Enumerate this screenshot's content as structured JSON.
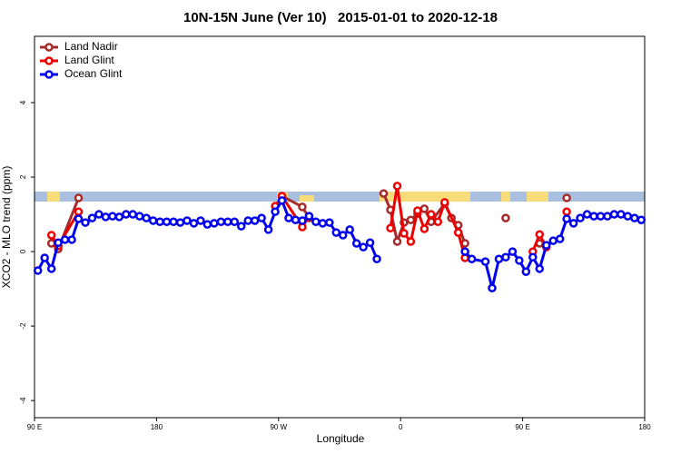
{
  "chart_data": {
    "type": "line",
    "title": "10N-15N June (Ver 10)   2015-01-01 to 2020-12-18",
    "x_label": "Longitude",
    "y_label": "XCO2 - MLO trend (ppm)",
    "xlim": [
      90,
      540
    ],
    "ylim": [
      -4.46,
      5.78
    ],
    "xticks": [
      {
        "value": 90,
        "label": "90 E"
      },
      180,
      {
        "value": 270,
        "label": "90 W"
      },
      {
        "value": 360,
        "label": "0"
      },
      {
        "value": 450,
        "label": "90 E"
      },
      {
        "value": 540,
        "label": "180"
      }
    ],
    "yticks": [
      -4,
      -2,
      0,
      2,
      4
    ],
    "legend": "top-left",
    "series": [
      {
        "name": "Land Nadir",
        "color": "#a52a2a",
        "x": [
          102.5,
          107.5,
          122.5,
          127.5,
          272.5,
          287.5,
          292.5,
          297.5,
          347.5,
          352.5,
          357.5,
          362.5,
          367.5,
          372.5,
          377.5,
          382.5,
          392.5,
          397.5,
          402.5,
          407.5,
          412.5,
          437.5,
          442.5,
          462.5,
          467.5,
          482.5
        ],
        "values": [
          0.22,
          0.07,
          1.44,
          null,
          1.49,
          1.2,
          0.9,
          null,
          1.56,
          1.12,
          0.27,
          0.78,
          0.85,
          1.02,
          1.15,
          0.8,
          1.29,
          0.9,
          0.71,
          0.22,
          null,
          0.9,
          null,
          0.22,
          null,
          1.44
        ]
      },
      {
        "name": "Land Glint",
        "color": "#ee0000",
        "x": [
          102.5,
          107.5,
          122.5,
          127.5,
          267.5,
          272.5,
          287.5,
          292.5,
          297.5,
          352.5,
          357.5,
          362.5,
          367.5,
          372.5,
          377.5,
          382.5,
          387.5,
          392.5,
          402.5,
          407.5,
          412.5,
          457.5,
          462.5,
          467.5,
          472.5,
          482.5
        ],
        "values": [
          0.44,
          0.15,
          1.07,
          null,
          1.22,
          1.49,
          0.66,
          0.95,
          null,
          0.63,
          1.76,
          0.49,
          0.27,
          1.1,
          0.61,
          1.0,
          0.8,
          1.32,
          0.51,
          -0.17,
          null,
          0.0,
          0.46,
          0.12,
          null,
          1.07
        ]
      },
      {
        "name": "Ocean Glint",
        "color": "#0000ee",
        "x": [
          92.5,
          97.5,
          102.5,
          107.5,
          112.5,
          117.5,
          122.5,
          127.5,
          132.5,
          137.5,
          142.5,
          147.5,
          152.5,
          157.5,
          162.5,
          167.5,
          172.5,
          177.5,
          182.5,
          187.5,
          192.5,
          197.5,
          202.5,
          207.5,
          212.5,
          217.5,
          222.5,
          227.5,
          232.5,
          237.5,
          242.5,
          247.5,
          252.5,
          257.5,
          262.5,
          267.5,
          272.5,
          277.5,
          282.5,
          287.5,
          292.5,
          297.5,
          302.5,
          307.5,
          312.5,
          317.5,
          322.5,
          327.5,
          332.5,
          337.5,
          342.5,
          347.5,
          407.5,
          412.5,
          422.5,
          427.5,
          432.5,
          437.5,
          442.5,
          447.5,
          452.5,
          457.5,
          462.5,
          467.5,
          472.5,
          477.5,
          482.5,
          487.5,
          492.5,
          497.5,
          502.5,
          507.5,
          512.5,
          517.5,
          522.5,
          527.5,
          532.5,
          537.5
        ],
        "values": [
          -0.51,
          -0.17,
          -0.46,
          0.24,
          0.32,
          0.32,
          0.88,
          0.78,
          0.9,
          1.0,
          0.93,
          0.95,
          0.93,
          1.0,
          1.0,
          0.95,
          0.9,
          0.83,
          0.8,
          0.8,
          0.8,
          0.78,
          0.83,
          0.76,
          0.83,
          0.73,
          0.76,
          0.8,
          0.8,
          0.8,
          0.68,
          0.83,
          0.83,
          0.9,
          0.59,
          1.07,
          1.37,
          0.9,
          0.85,
          0.83,
          0.95,
          0.8,
          0.76,
          0.78,
          0.51,
          0.44,
          0.59,
          0.22,
          0.12,
          0.24,
          -0.2,
          null,
          0.0,
          -0.2,
          -0.27,
          -0.98,
          -0.2,
          -0.15,
          0.0,
          -0.24,
          -0.54,
          -0.15,
          -0.46,
          0.17,
          0.29,
          0.34,
          0.88,
          0.76,
          0.9,
          1.0,
          0.95,
          0.95,
          0.95,
          1.0,
          1.0,
          0.95,
          0.9,
          0.85
        ]
      }
    ]
  }
}
